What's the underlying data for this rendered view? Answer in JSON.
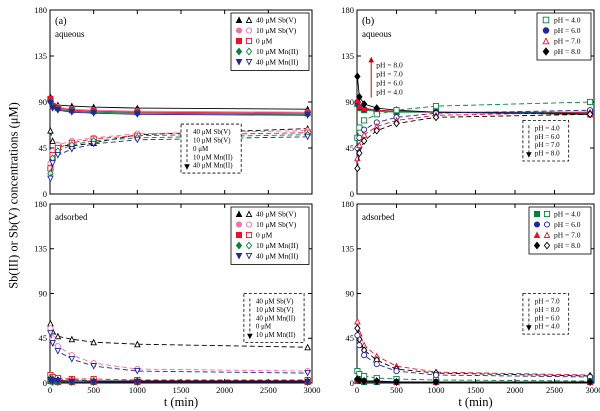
{
  "figure": {
    "ylabel": "Sb(III) or Sb(V) concentrations (μM)",
    "xlabel": "t (min)"
  },
  "chart_data": {
    "type": "scatter",
    "xlabel": "t (min)",
    "ylabel": "Sb(III) or Sb(V) concentrations (μM)",
    "panels": [
      {
        "tag": "(a)",
        "phase": "aqueous",
        "xlim": [
          0,
          3000
        ],
        "ylim": [
          0,
          180
        ],
        "xticks": [
          0,
          500,
          1000,
          1500,
          2000,
          2500,
          3000
        ],
        "yticks": [
          0,
          45,
          90,
          135,
          180
        ],
        "show_x_labels": false,
        "x": [
          5,
          30,
          90,
          250,
          500,
          1000,
          2950
        ],
        "series": [
          {
            "label": "40 μM Sb(V)",
            "color": "#000000",
            "marker": "triangle-up",
            "filled": true,
            "line": "solid",
            "y": [
              95,
              89,
              87,
              86,
              85,
              84,
              83
            ]
          },
          {
            "label": "10 μM Sb(V)",
            "color": "#f06eaa",
            "marker": "circle",
            "filled": true,
            "line": "solid",
            "y": [
              92,
              87,
              85,
              83,
              82,
              81,
              80
            ]
          },
          {
            "label": "0 μM",
            "color": "#e8112d",
            "marker": "square",
            "filled": true,
            "line": "solid",
            "y": [
              93,
              86,
              84,
              82,
              81,
              80,
              79
            ]
          },
          {
            "label": "10 μM Mn(II)",
            "color": "#00843d",
            "marker": "diamond",
            "filled": true,
            "line": "solid",
            "y": [
              90,
              85,
              83,
              81,
              80,
              79,
              78
            ]
          },
          {
            "label": "40 μM Mn(II)",
            "color": "#24249c",
            "marker": "triangle-down",
            "filled": true,
            "line": "solid",
            "y": [
              89,
              84,
              82,
              80,
              79,
              78,
              77
            ]
          },
          {
            "label": "40 μM Sb(V)",
            "color": "#000000",
            "marker": "triangle-up",
            "filled": false,
            "line": "dashed",
            "y": [
              62,
              52,
              48,
              47,
              50,
              58,
              64
            ]
          },
          {
            "label": "10 μM Sb(V)",
            "color": "#f06eaa",
            "marker": "circle",
            "filled": false,
            "line": "dashed",
            "y": [
              30,
              42,
              48,
              52,
              55,
              59,
              62
            ]
          },
          {
            "label": "0 μM",
            "color": "#e8112d",
            "marker": "square",
            "filled": false,
            "line": "dashed",
            "y": [
              25,
              38,
              45,
              50,
              54,
              57,
              60
            ]
          },
          {
            "label": "10 μM Mn(II)",
            "color": "#00843d",
            "marker": "diamond",
            "filled": false,
            "line": "dashed",
            "y": [
              20,
              35,
              42,
              48,
              52,
              55,
              58
            ]
          },
          {
            "label": "40 μM Mn(II)",
            "color": "#24249c",
            "marker": "triangle-down",
            "filled": false,
            "line": "dashed",
            "y": [
              15,
              30,
              38,
              44,
              49,
              53,
              56
            ]
          }
        ],
        "legend": {
          "pair": true,
          "width": 78,
          "entries": [
            {
              "marker": "triangle-up",
              "color": "#000000",
              "label": "40 μM Sb(V)"
            },
            {
              "marker": "circle",
              "color": "#f06eaa",
              "label": "10 μM Sb(V)"
            },
            {
              "marker": "square",
              "color": "#e8112d",
              "label": "0 μM"
            },
            {
              "marker": "diamond",
              "color": "#00843d",
              "label": "10 μM Mn(II)"
            },
            {
              "marker": "triangle-down",
              "color": "#24249c",
              "label": "40 μM Mn(II)"
            }
          ]
        },
        "annotation": {
          "fx": 0.5,
          "fy": 0.62,
          "arrow": "down",
          "lines": [
            "40 μM Sb(V)",
            "10 μM Sb(V)",
            "0 μM",
            "10 μM Mn(II)",
            "40 μM Mn(II)"
          ]
        }
      },
      {
        "tag": "(b)",
        "phase": "aqueous",
        "xlim": [
          0,
          3000
        ],
        "ylim": [
          0,
          180
        ],
        "xticks": [
          0,
          500,
          1000,
          1500,
          2000,
          2500,
          3000
        ],
        "yticks": [
          0,
          45,
          90,
          135,
          180
        ],
        "show_x_labels": false,
        "x": [
          5,
          30,
          90,
          250,
          500,
          1000,
          2950
        ],
        "series": [
          {
            "label": "pH = 4.0",
            "color": "#00843d",
            "marker": "square",
            "filled": true,
            "line": "solid",
            "y": [
              88,
              84,
              82,
              81,
              80,
              80,
              80
            ]
          },
          {
            "label": "pH = 6.0",
            "color": "#24249c",
            "marker": "circle",
            "filled": true,
            "line": "solid",
            "y": [
              90,
              85,
              83,
              82,
              81,
              80,
              79
            ]
          },
          {
            "label": "pH = 7.0",
            "color": "#e8112d",
            "marker": "triangle-up",
            "filled": true,
            "line": "solid",
            "y": [
              92,
              86,
              84,
              82,
              81,
              80,
              78
            ]
          },
          {
            "label": "pH = 8.0",
            "color": "#000000",
            "marker": "diamond",
            "filled": true,
            "line": "solid",
            "y": [
              115,
              95,
              88,
              84,
              82,
              80,
              78
            ]
          },
          {
            "label": "pH = 4.0",
            "color": "#00843d",
            "marker": "square",
            "filled": false,
            "line": "dashed",
            "y": [
              55,
              65,
              72,
              78,
              82,
              86,
              90
            ]
          },
          {
            "label": "pH = 6.0",
            "color": "#24249c",
            "marker": "circle",
            "filled": false,
            "line": "dashed",
            "y": [
              45,
              55,
              63,
              70,
              75,
              79,
              82
            ]
          },
          {
            "label": "pH = 7.0",
            "color": "#e8112d",
            "marker": "triangle-up",
            "filled": false,
            "line": "dashed",
            "y": [
              35,
              48,
              58,
              66,
              72,
              77,
              80
            ]
          },
          {
            "label": "pH = 8.0",
            "color": "#000000",
            "marker": "diamond",
            "filled": false,
            "line": "dashed",
            "y": [
              25,
              40,
              52,
              62,
              69,
              75,
              78
            ]
          }
        ],
        "legend": {
          "pair": false,
          "width": 54,
          "entries": [
            {
              "marker": "square",
              "color": "#00843d",
              "filled": false,
              "label": "pH = 4.0"
            },
            {
              "marker": "circle",
              "color": "#24249c",
              "filled": true,
              "label": "pH = 6.0"
            },
            {
              "marker": "triangle-up",
              "color": "#e8112d",
              "filled": false,
              "label": "pH = 7.0"
            },
            {
              "marker": "diamond",
              "color": "#000000",
              "filled": true,
              "label": "pH = 8.0"
            }
          ]
        },
        "annotation": {
          "fx": 0.7,
          "fy": 0.6,
          "arrow": "down",
          "lines": [
            "pH = 4.0",
            "pH = 6.0",
            "pH = 7.0",
            "pH = 8.0"
          ]
        },
        "callout": {
          "fx": 0.06,
          "fy": 0.28,
          "color": "#cc0000",
          "arrow": "up",
          "lines": [
            "pH = 8.0",
            "pH = 7.0",
            "pH = 6.0",
            "pH = 4.0"
          ]
        }
      },
      {
        "tag": "",
        "phase": "adsorbed",
        "xlim": [
          0,
          3000
        ],
        "ylim": [
          0,
          180
        ],
        "xticks": [
          0,
          500,
          1000,
          1500,
          2000,
          2500,
          3000
        ],
        "yticks": [
          0,
          45,
          90,
          135,
          180
        ],
        "show_x_labels": true,
        "x": [
          5,
          30,
          90,
          250,
          500,
          1000,
          2950
        ],
        "series": [
          {
            "label": "40 μM Sb(V)",
            "color": "#000000",
            "marker": "triangle-up",
            "filled": false,
            "line": "dashed",
            "y": [
              60,
              52,
              47,
              44,
              41,
              39,
              36
            ]
          },
          {
            "label": "10 μM Sb(V)",
            "color": "#f06eaa",
            "marker": "circle",
            "filled": false,
            "line": "dashed",
            "y": [
              55,
              45,
              37,
              28,
              20,
              14,
              12
            ]
          },
          {
            "label": "40 μM Mn(II)",
            "color": "#24249c",
            "marker": "triangle-down",
            "filled": false,
            "line": "dashed",
            "y": [
              50,
              40,
              32,
              24,
              17,
              12,
              10
            ]
          },
          {
            "label": "0 μM",
            "color": "#e8112d",
            "marker": "square",
            "filled": false,
            "line": "dashed",
            "y": [
              8,
              6,
              5,
              4,
              4,
              3,
              3
            ]
          },
          {
            "label": "10 μM Mn(II)",
            "color": "#00843d",
            "marker": "diamond",
            "filled": false,
            "line": "dashed",
            "y": [
              5,
              4,
              3,
              3,
              2,
              2,
              2
            ]
          },
          {
            "label": "40 μM Sb(V)",
            "color": "#000000",
            "marker": "triangle-up",
            "filled": true,
            "line": "solid",
            "y": [
              4,
              3,
              3,
              2,
              2,
              2,
              2
            ]
          },
          {
            "label": "10 μM Sb(V)",
            "color": "#f06eaa",
            "marker": "circle",
            "filled": true,
            "line": "solid",
            "y": [
              3,
              2,
              2,
              2,
              1,
              1,
              1
            ]
          },
          {
            "label": "0 μM",
            "color": "#e8112d",
            "marker": "square",
            "filled": true,
            "line": "solid",
            "y": [
              2,
              2,
              1,
              1,
              1,
              1,
              1
            ]
          },
          {
            "label": "10 μM Mn(II)",
            "color": "#00843d",
            "marker": "diamond",
            "filled": true,
            "line": "solid",
            "y": [
              2,
              1,
              1,
              1,
              1,
              1,
              1
            ]
          },
          {
            "label": "40 μM Mn(II)",
            "color": "#24249c",
            "marker": "triangle-down",
            "filled": true,
            "line": "solid",
            "y": [
              3,
              2,
              2,
              1,
              1,
              1,
              1
            ]
          }
        ],
        "legend": {
          "pair": true,
          "width": 78,
          "entries": [
            {
              "marker": "triangle-up",
              "color": "#000000",
              "label": "40 μM Sb(V)"
            },
            {
              "marker": "circle",
              "color": "#f06eaa",
              "label": "10 μM Sb(V)"
            },
            {
              "marker": "square",
              "color": "#e8112d",
              "label": "0 μM"
            },
            {
              "marker": "diamond",
              "color": "#00843d",
              "label": "10 μM Mn(II)"
            },
            {
              "marker": "triangle-down",
              "color": "#24249c",
              "label": "40 μM Mn(II)"
            }
          ]
        },
        "annotation": {
          "fx": 0.74,
          "fy": 0.5,
          "arrow": "down",
          "lines": [
            "40 μM Sb(V)",
            "10 μM Sb(V)",
            "40 μM Mn(II)",
            "0 μM",
            "10 μM Mn(II)"
          ]
        }
      },
      {
        "tag": "",
        "phase": "adsorbed",
        "xlim": [
          0,
          3000
        ],
        "ylim": [
          0,
          180
        ],
        "xticks": [
          0,
          500,
          1000,
          1500,
          2000,
          2500,
          3000
        ],
        "yticks": [
          0,
          45,
          90,
          135,
          180
        ],
        "show_x_labels": true,
        "x": [
          5,
          30,
          90,
          250,
          500,
          1000,
          2950
        ],
        "series": [
          {
            "label": "pH = 7.0",
            "color": "#e8112d",
            "marker": "triangle-up",
            "filled": false,
            "line": "dashed",
            "y": [
              62,
              50,
              38,
              27,
              17,
              11,
              8
            ]
          },
          {
            "label": "pH = 8.0",
            "color": "#000000",
            "marker": "diamond",
            "filled": false,
            "line": "dashed",
            "y": [
              55,
              44,
              33,
              23,
              14,
              10,
              7
            ]
          },
          {
            "label": "pH = 6.0",
            "color": "#24249c",
            "marker": "circle",
            "filled": false,
            "line": "dashed",
            "y": [
              48,
              38,
              28,
              19,
              12,
              8,
              6
            ]
          },
          {
            "label": "pH = 4.0",
            "color": "#00843d",
            "marker": "square",
            "filled": false,
            "line": "dashed",
            "y": [
              12,
              9,
              7,
              5,
              4,
              3,
              2
            ]
          },
          {
            "label": "pH = 4.0",
            "color": "#00843d",
            "marker": "square",
            "filled": true,
            "line": "solid",
            "y": [
              2,
              2,
              1,
              1,
              1,
              1,
              1
            ]
          },
          {
            "label": "pH = 6.0",
            "color": "#24249c",
            "marker": "circle",
            "filled": true,
            "line": "solid",
            "y": [
              3,
              2,
              2,
              1,
              1,
              1,
              1
            ]
          },
          {
            "label": "pH = 7.0",
            "color": "#e8112d",
            "marker": "triangle-up",
            "filled": true,
            "line": "solid",
            "y": [
              3,
              3,
              2,
              2,
              1,
              1,
              1
            ]
          },
          {
            "label": "pH = 8.0",
            "color": "#000000",
            "marker": "diamond",
            "filled": true,
            "line": "solid",
            "y": [
              4,
              3,
              2,
              2,
              1,
              1,
              1
            ]
          }
        ],
        "legend": {
          "pair": true,
          "width": 62,
          "entries": [
            {
              "marker": "square",
              "color": "#00843d",
              "label": "pH = 4.0"
            },
            {
              "marker": "circle",
              "color": "#24249c",
              "label": "pH = 6.0"
            },
            {
              "marker": "triangle-up",
              "color": "#e8112d",
              "label": "pH = 7.0"
            },
            {
              "marker": "diamond",
              "color": "#000000",
              "label": "pH = 8.0"
            }
          ]
        },
        "annotation": {
          "fx": 0.7,
          "fy": 0.5,
          "arrow": "down",
          "lines": [
            "pH = 7.0",
            "pH = 8.0",
            "pH = 6.0",
            "pH = 4.0"
          ]
        }
      }
    ]
  }
}
